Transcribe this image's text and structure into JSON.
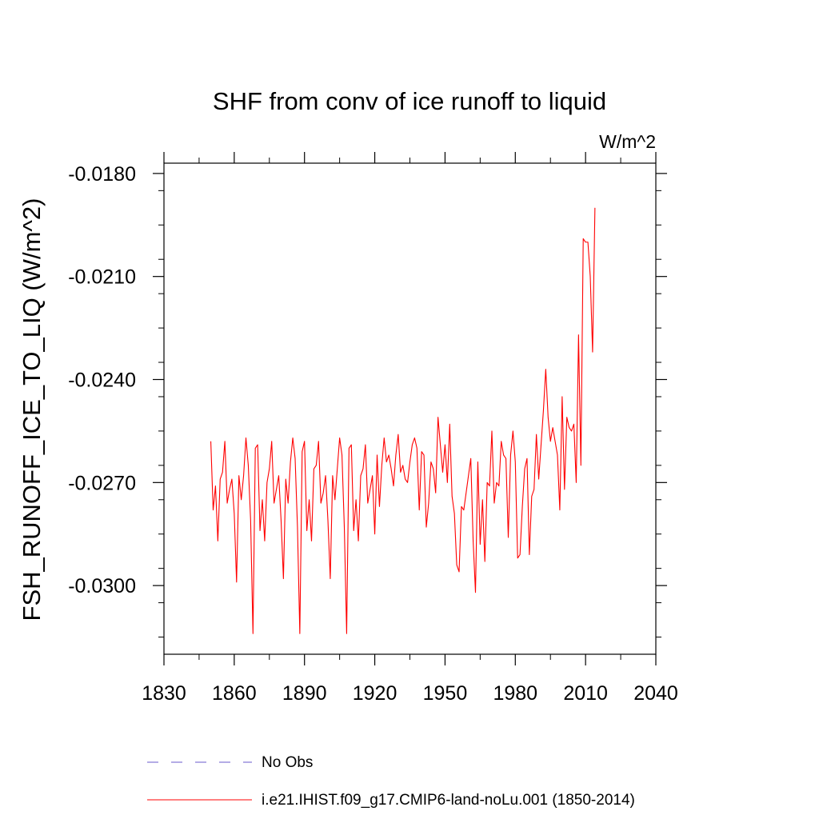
{
  "chart_data": {
    "type": "line",
    "title": "SHF from conv of ice runoff to liquid",
    "units_label": "W/m^2",
    "ylabel": "FSH_RUNOFF_ICE_TO_LIQ  (W/m^2)",
    "xlabel": "",
    "xlim": [
      1830,
      2040
    ],
    "ylim": [
      -0.032,
      -0.0177
    ],
    "x_ticks": [
      1830,
      1860,
      1890,
      1920,
      1950,
      1980,
      2010,
      2040
    ],
    "x_tick_labels": [
      "1830",
      "1860",
      "1890",
      "1920",
      "1950",
      "1980",
      "2010",
      "2040"
    ],
    "y_ticks": [
      -0.018,
      -0.021,
      -0.024,
      -0.027,
      -0.03
    ],
    "y_tick_labels": [
      "-0.0180",
      "-0.0210",
      "-0.0240",
      "-0.0270",
      "-0.0300"
    ],
    "grid": false,
    "legend_position": "bottom",
    "series": [
      {
        "name": "i.e21.IHIST.f09_g17.CMIP6-land-noLu.001 (1850-2014)",
        "color": "#ff0000",
        "x_start": 1850,
        "x_step": 1,
        "values": [
          -0.0258,
          -0.0278,
          -0.0271,
          -0.0287,
          -0.0269,
          -0.0267,
          -0.0258,
          -0.0276,
          -0.0272,
          -0.0269,
          -0.0279,
          -0.0299,
          -0.0268,
          -0.0275,
          -0.0268,
          -0.0257,
          -0.0265,
          -0.0281,
          -0.0314,
          -0.026,
          -0.0259,
          -0.0284,
          -0.0275,
          -0.0287,
          -0.027,
          -0.0266,
          -0.0258,
          -0.0276,
          -0.0272,
          -0.0268,
          -0.0281,
          -0.0298,
          -0.0269,
          -0.0276,
          -0.0264,
          -0.0257,
          -0.0263,
          -0.0283,
          -0.0314,
          -0.0261,
          -0.0258,
          -0.0284,
          -0.0275,
          -0.0287,
          -0.0266,
          -0.0265,
          -0.0258,
          -0.0276,
          -0.0273,
          -0.0268,
          -0.0281,
          -0.0298,
          -0.0268,
          -0.0275,
          -0.0266,
          -0.0257,
          -0.0262,
          -0.0283,
          -0.0314,
          -0.026,
          -0.0259,
          -0.0284,
          -0.0275,
          -0.0287,
          -0.0268,
          -0.0266,
          -0.0259,
          -0.0276,
          -0.0272,
          -0.0268,
          -0.0285,
          -0.0262,
          -0.0277,
          -0.0265,
          -0.0257,
          -0.0264,
          -0.0262,
          -0.0266,
          -0.0271,
          -0.0262,
          -0.0256,
          -0.0267,
          -0.0265,
          -0.0269,
          -0.027,
          -0.0264,
          -0.0259,
          -0.0257,
          -0.026,
          -0.0278,
          -0.0261,
          -0.0262,
          -0.0283,
          -0.0276,
          -0.0264,
          -0.0266,
          -0.0273,
          -0.0251,
          -0.0259,
          -0.0267,
          -0.0259,
          -0.027,
          -0.0253,
          -0.0274,
          -0.0279,
          -0.0294,
          -0.0296,
          -0.0277,
          -0.0278,
          -0.0273,
          -0.0268,
          -0.0263,
          -0.0287,
          -0.0302,
          -0.0264,
          -0.0288,
          -0.0275,
          -0.0293,
          -0.027,
          -0.0271,
          -0.0255,
          -0.0276,
          -0.027,
          -0.0271,
          -0.0258,
          -0.0262,
          -0.0263,
          -0.0286,
          -0.0262,
          -0.0255,
          -0.0264,
          -0.0292,
          -0.0291,
          -0.0277,
          -0.0266,
          -0.0263,
          -0.0291,
          -0.0274,
          -0.0272,
          -0.0256,
          -0.0269,
          -0.0259,
          -0.0249,
          -0.0237,
          -0.0251,
          -0.0258,
          -0.0254,
          -0.0258,
          -0.0262,
          -0.0278,
          -0.0245,
          -0.0272,
          -0.0251,
          -0.0254,
          -0.0255,
          -0.0253,
          -0.027,
          -0.0227,
          -0.0265,
          -0.0199,
          -0.02,
          -0.02,
          -0.021,
          -0.0232,
          -0.019
        ]
      }
    ],
    "legend": [
      {
        "label": "No Obs",
        "color": "#6a5acd",
        "style": "dashed"
      },
      {
        "label": "i.e21.IHIST.f09_g17.CMIP6-land-noLu.001 (1850-2014)",
        "color": "#ff0000",
        "style": "solid"
      }
    ]
  }
}
